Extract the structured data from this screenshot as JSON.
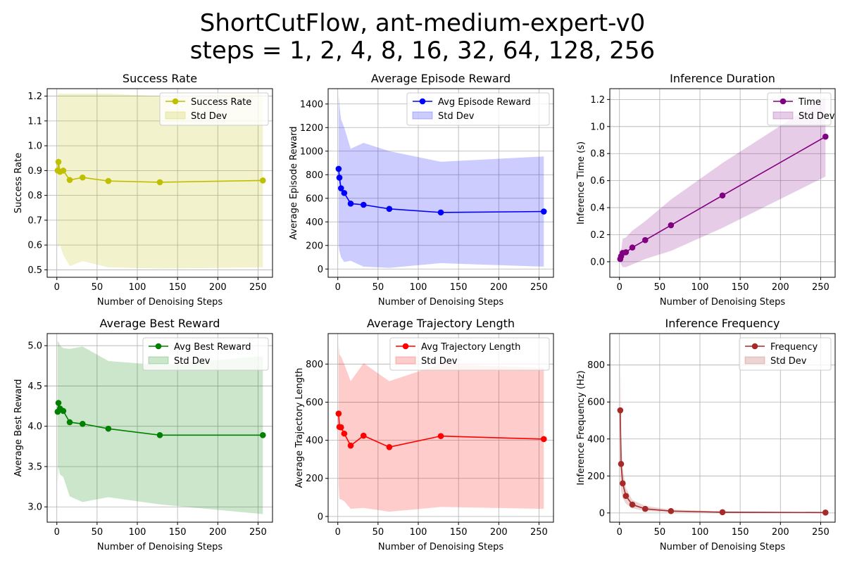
{
  "figure": {
    "title_line1": "ShortCutFlow, ant-medium-expert-v0",
    "title_line2": "steps = 1, 2, 4, 8, 16, 32, 64, 128, 256"
  },
  "chart_data": [
    {
      "type": "line",
      "title": "Success Rate",
      "xlabel": "Number of Denoising Steps",
      "ylabel": "Success Rate",
      "xlim": [
        -12,
        268
      ],
      "ylim": [
        0.47,
        1.23
      ],
      "xticks": [
        0,
        50,
        100,
        150,
        200,
        250
      ],
      "yticks": [
        0.5,
        0.6,
        0.7,
        0.8,
        0.9,
        1.0,
        1.1,
        1.2
      ],
      "ytick_labels": [
        "0.5",
        "0.6",
        "0.7",
        "0.8",
        "0.9",
        "1.0",
        "1.1",
        "1.2"
      ],
      "grid": true,
      "legend_position": "top-right",
      "color": "#bfbf00",
      "series": [
        {
          "name": "Success Rate",
          "x": [
            1,
            2,
            4,
            8,
            16,
            32,
            64,
            128,
            256
          ],
          "y": [
            0.9,
            0.935,
            0.895,
            0.9,
            0.862,
            0.872,
            0.858,
            0.853,
            0.86
          ]
        }
      ],
      "band": {
        "name": "Std Dev",
        "lower": [
          0.6,
          0.59,
          0.6,
          0.56,
          0.515,
          0.535,
          0.51,
          0.505,
          0.51
        ],
        "upper": [
          1.2,
          1.21,
          1.21,
          1.21,
          1.21,
          1.21,
          1.21,
          1.2,
          1.21
        ]
      }
    },
    {
      "type": "line",
      "title": "Average Episode Reward",
      "xlabel": "Number of Denoising Steps",
      "ylabel": "Average Episode Reward",
      "xlim": [
        -12,
        268
      ],
      "ylim": [
        -70,
        1530
      ],
      "xticks": [
        0,
        50,
        100,
        150,
        200,
        250
      ],
      "yticks": [
        0,
        200,
        400,
        600,
        800,
        1000,
        1200,
        1400
      ],
      "ytick_labels": [
        "0",
        "200",
        "400",
        "600",
        "800",
        "1000",
        "1200",
        "1400"
      ],
      "grid": true,
      "legend_position": "top-right",
      "color": "#0000ff",
      "series": [
        {
          "name": "Avg Episode Reward",
          "x": [
            1,
            2,
            4,
            8,
            16,
            32,
            64,
            128,
            256
          ],
          "y": [
            850,
            775,
            685,
            645,
            555,
            545,
            510,
            480,
            488
          ]
        }
      ],
      "band": {
        "name": "Std Dev",
        "lower": [
          200,
          150,
          100,
          60,
          70,
          20,
          10,
          50,
          20
        ],
        "upper": [
          1480,
          1390,
          1270,
          1200,
          1020,
          1070,
          1000,
          910,
          955
        ]
      }
    },
    {
      "type": "line",
      "title": "Inference Duration",
      "xlabel": "Number of Denoising Steps",
      "ylabel": "Inference Time (s)",
      "xlim": [
        -12,
        268
      ],
      "ylim": [
        -0.115,
        1.28
      ],
      "xticks": [
        0,
        50,
        100,
        150,
        200,
        250
      ],
      "yticks": [
        0.0,
        0.2,
        0.4,
        0.6,
        0.8,
        1.0,
        1.2
      ],
      "ytick_labels": [
        "0.0",
        "0.2",
        "0.4",
        "0.6",
        "0.8",
        "1.0",
        "1.2"
      ],
      "grid": true,
      "legend_position": "top-right",
      "color": "#800080",
      "series": [
        {
          "name": "Time",
          "x": [
            1,
            2,
            4,
            8,
            16,
            32,
            64,
            128,
            256
          ],
          "y": [
            0.02,
            0.04,
            0.065,
            0.07,
            0.105,
            0.16,
            0.27,
            0.49,
            0.925
          ]
        }
      ],
      "band": {
        "name": "Std Dev",
        "lower": [
          0.0,
          -0.02,
          -0.04,
          -0.04,
          -0.02,
          0.02,
          0.08,
          0.25,
          0.63
        ],
        "upper": [
          0.04,
          0.08,
          0.17,
          0.18,
          0.23,
          0.3,
          0.46,
          0.73,
          1.22
        ]
      }
    },
    {
      "type": "line",
      "title": "Average Best Reward",
      "xlabel": "Number of Denoising Steps",
      "ylabel": "Average Best Reward",
      "xlim": [
        -12,
        268
      ],
      "ylim": [
        2.81,
        5.15
      ],
      "xticks": [
        0,
        50,
        100,
        150,
        200,
        250
      ],
      "yticks": [
        3.0,
        3.5,
        4.0,
        4.5,
        5.0
      ],
      "ytick_labels": [
        "3.0",
        "3.5",
        "4.0",
        "4.5",
        "5.0"
      ],
      "grid": true,
      "legend_position": "top-right",
      "color": "#008000",
      "series": [
        {
          "name": "Avg Best Reward",
          "x": [
            1,
            2,
            4,
            8,
            16,
            32,
            64,
            128,
            256
          ],
          "y": [
            4.18,
            4.29,
            4.22,
            4.19,
            4.05,
            4.03,
            3.97,
            3.89,
            3.89
          ]
        }
      ],
      "band": {
        "name": "Std Dev",
        "lower": [
          3.3,
          3.5,
          3.4,
          3.37,
          3.13,
          3.06,
          3.12,
          3.03,
          2.91
        ],
        "upper": [
          5.05,
          5.05,
          5.0,
          4.97,
          4.96,
          4.99,
          4.81,
          4.76,
          4.87
        ]
      }
    },
    {
      "type": "line",
      "title": "Average Trajectory Length",
      "xlabel": "Number of Denoising Steps",
      "ylabel": "Average Trajectory Length",
      "xlim": [
        -12,
        268
      ],
      "ylim": [
        -30,
        960
      ],
      "xticks": [
        0,
        50,
        100,
        150,
        200,
        250
      ],
      "yticks": [
        0,
        200,
        400,
        600,
        800
      ],
      "ytick_labels": [
        "0",
        "200",
        "400",
        "600",
        "800"
      ],
      "grid": true,
      "legend_position": "top-right",
      "color": "#ff0000",
      "series": [
        {
          "name": "Avg Trajectory Length",
          "x": [
            1,
            2,
            4,
            8,
            16,
            32,
            64,
            128,
            256
          ],
          "y": [
            540,
            470,
            468,
            435,
            372,
            424,
            364,
            422,
            406
          ]
        }
      ],
      "band": {
        "name": "Std Dev",
        "lower": [
          170,
          90,
          90,
          80,
          40,
          45,
          25,
          50,
          40
        ],
        "upper": [
          910,
          850,
          840,
          800,
          710,
          805,
          710,
          800,
          780
        ]
      }
    },
    {
      "type": "line",
      "title": "Inference Frequency",
      "xlabel": "Number of Denoising Steps",
      "ylabel": "Inference Frequency (Hz)",
      "xlim": [
        -12,
        268
      ],
      "ylim": [
        -50,
        970
      ],
      "xticks": [
        0,
        50,
        100,
        150,
        200,
        250
      ],
      "yticks": [
        0,
        200,
        400,
        600,
        800
      ],
      "ytick_labels": [
        "0",
        "200",
        "400",
        "600",
        "800"
      ],
      "grid": true,
      "legend_position": "top-right",
      "color": "#a52a2a",
      "series": [
        {
          "name": "Frequency",
          "x": [
            1,
            2,
            4,
            8,
            16,
            32,
            64,
            128,
            256
          ],
          "y": [
            555,
            265,
            160,
            92,
            45,
            22,
            10,
            4,
            2
          ]
        }
      ],
      "band": {
        "name": "Std Dev",
        "lower": [
          190,
          120,
          80,
          50,
          25,
          10,
          4,
          1,
          0
        ],
        "upper": [
          920,
          420,
          245,
          135,
          70,
          38,
          18,
          8,
          4
        ]
      }
    }
  ]
}
